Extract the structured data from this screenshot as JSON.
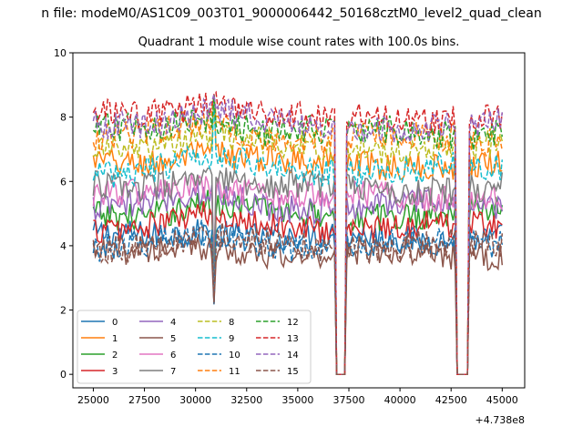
{
  "figure": {
    "suptitle": "n file: modeM0/AS1C09_003T01_9000006442_50168cztM0_level2_quad_clean",
    "x_offset_label": "+4.738e8"
  },
  "chart_data": {
    "type": "line",
    "title": "Quadrant 1 module wise count rates with 100.0s bins.",
    "xlabel": "",
    "ylabel": "",
    "xlim": [
      24000,
      46100
    ],
    "ylim": [
      -0.42,
      10
    ],
    "x_offset": 473800000,
    "x_ticks": [
      25000,
      27500,
      30000,
      32500,
      35000,
      37500,
      40000,
      42500,
      45000
    ],
    "y_ticks": [
      0,
      2,
      4,
      6,
      8,
      10
    ],
    "bin_seconds": 100.0,
    "x_start": 25000,
    "x_end": 45000,
    "gaps": [
      [
        36900,
        37300
      ],
      [
        42800,
        43300
      ]
    ],
    "dips": [
      [
        30900,
        0.35
      ]
    ],
    "legend": {
      "location": "lower-left",
      "columns": 4
    },
    "series": [
      {
        "name": "0",
        "color": "#1f77b4",
        "dash": "solid",
        "mean": 4.25
      },
      {
        "name": "1",
        "color": "#ff7f0e",
        "dash": "solid",
        "mean": 6.55
      },
      {
        "name": "2",
        "color": "#2ca02c",
        "dash": "solid",
        "mean": 5.0
      },
      {
        "name": "3",
        "color": "#d62728",
        "dash": "solid",
        "mean": 4.6
      },
      {
        "name": "4",
        "color": "#9467bd",
        "dash": "solid",
        "mean": 5.25
      },
      {
        "name": "5",
        "color": "#8c564b",
        "dash": "solid",
        "mean": 3.75
      },
      {
        "name": "6",
        "color": "#e377c2",
        "dash": "solid",
        "mean": 5.55
      },
      {
        "name": "7",
        "color": "#7f7f7f",
        "dash": "solid",
        "mean": 5.8
      },
      {
        "name": "8",
        "color": "#bcbd22",
        "dash": "dashed",
        "mean": 7.05
      },
      {
        "name": "9",
        "color": "#17becf",
        "dash": "dashed",
        "mean": 6.35
      },
      {
        "name": "10",
        "color": "#1f77b4",
        "dash": "dashed",
        "mean": 4.05
      },
      {
        "name": "11",
        "color": "#ff7f0e",
        "dash": "dashed",
        "mean": 7.35
      },
      {
        "name": "12",
        "color": "#2ca02c",
        "dash": "dashed",
        "mean": 7.55
      },
      {
        "name": "13",
        "color": "#d62728",
        "dash": "dashed",
        "mean": 8.0
      },
      {
        "name": "14",
        "color": "#9467bd",
        "dash": "dashed",
        "mean": 7.75
      },
      {
        "name": "15",
        "color": "#8c564b",
        "dash": "dashed",
        "mean": 4.0
      }
    ]
  }
}
